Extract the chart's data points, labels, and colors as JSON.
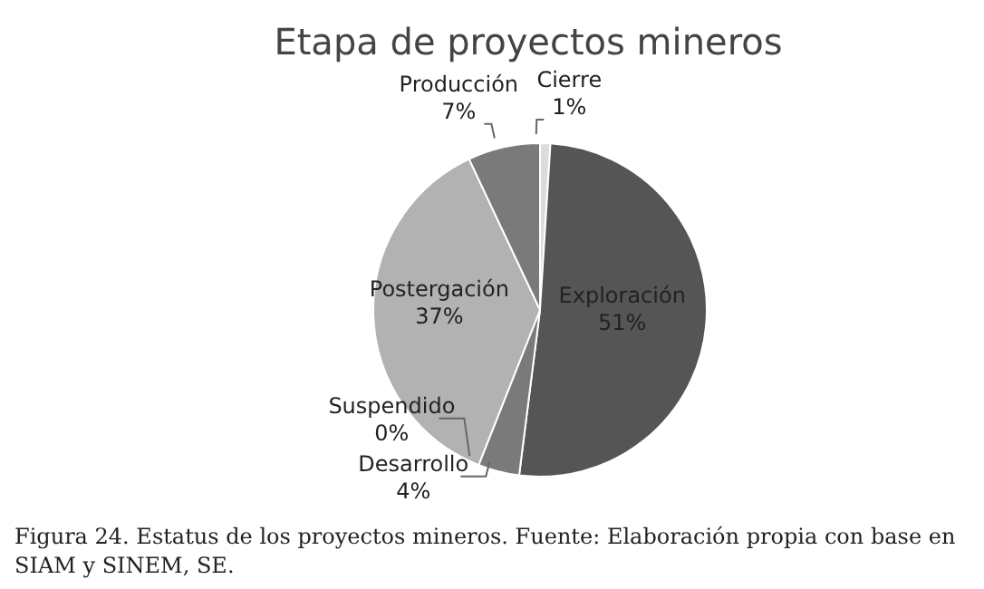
{
  "chart_data": {
    "type": "pie",
    "title": "Etapa de proyectos mineros",
    "categories": [
      "Cierre",
      "Exploración",
      "Desarrollo",
      "Suspendido",
      "Postergación",
      "Producción"
    ],
    "values": [
      1,
      51,
      4,
      0,
      37,
      7
    ],
    "value_labels": [
      "1%",
      "51%",
      "4%",
      "0%",
      "37%",
      "7%"
    ],
    "colors": [
      "#dcdcdc",
      "#555555",
      "#7a7a7a",
      "#999999",
      "#b2b2b2",
      "#7a7a7a"
    ],
    "legend": false,
    "annotations": [
      "Figura 24. Estatus de los proyectos mineros. Fuente: Elaboración propia con base en SIAM y SINEM, SE."
    ]
  }
}
